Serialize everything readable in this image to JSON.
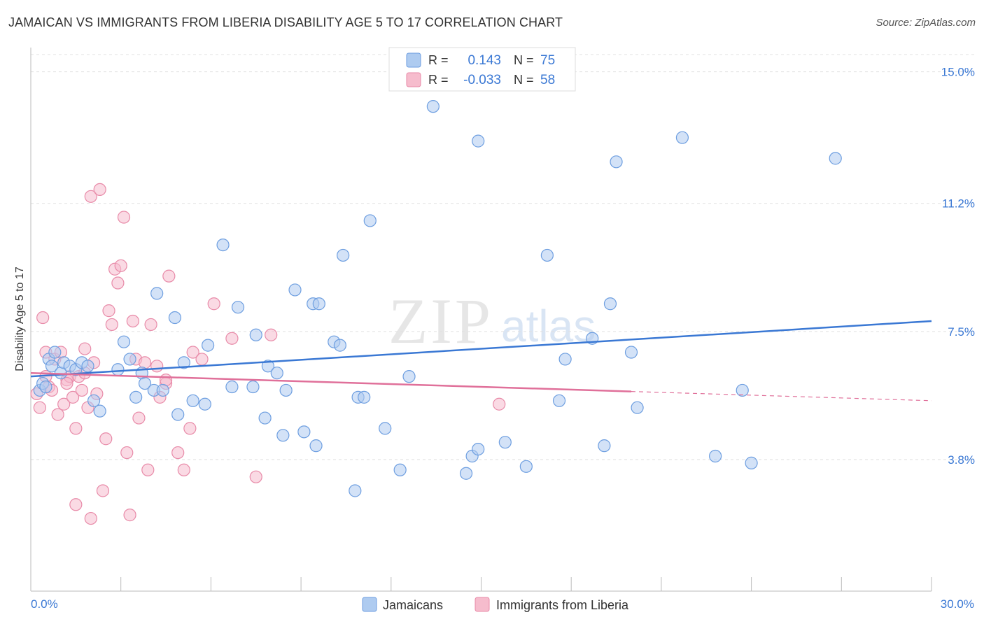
{
  "header": {
    "title": "JAMAICAN VS IMMIGRANTS FROM LIBERIA DISABILITY AGE 5 TO 17 CORRELATION CHART",
    "source": "Source: ZipAtlas.com"
  },
  "watermark": {
    "zip": "ZIP",
    "atlas": "atlas"
  },
  "legend_box": {
    "rows": [
      {
        "r_label": "R =",
        "r_value": "0.143",
        "n_label": "N =",
        "n_value": "75"
      },
      {
        "r_label": "R =",
        "r_value": "-0.033",
        "n_label": "N =",
        "n_value": "58"
      }
    ]
  },
  "bottom_legend": {
    "items": [
      "Jamaicans",
      "Immigrants from Liberia"
    ]
  },
  "colors": {
    "blue_fill": "#aecbf0",
    "blue_stroke": "#6d9ee0",
    "blue_line": "#3a78d4",
    "pink_fill": "#f6bccd",
    "pink_stroke": "#e88aa8",
    "pink_line": "#e0709a",
    "value_text": "#3a78d4",
    "grid": "#e0e0e0"
  },
  "chart_data": {
    "type": "scatter",
    "ylabel": "Disability Age 5 to 17",
    "xlim": [
      0,
      30
    ],
    "ylim": [
      0,
      15.7
    ],
    "x_tick_labels": [
      "0.0%",
      "30.0%"
    ],
    "y_ticks": [
      3.8,
      7.5,
      11.2,
      15.0
    ],
    "y_tick_labels": [
      "3.8%",
      "7.5%",
      "11.2%",
      "15.0%"
    ],
    "grid": true,
    "series": [
      {
        "name": "Jamaicans",
        "color": "blue",
        "r": 0.143,
        "n": 75,
        "trend": {
          "x": [
            0,
            30
          ],
          "y": [
            6.2,
            7.8
          ],
          "dashed_from": null
        },
        "points": [
          [
            0.3,
            5.8
          ],
          [
            0.4,
            6.0
          ],
          [
            0.5,
            5.9
          ],
          [
            0.6,
            6.7
          ],
          [
            0.7,
            6.5
          ],
          [
            0.8,
            6.9
          ],
          [
            1.0,
            6.3
          ],
          [
            1.1,
            6.6
          ],
          [
            1.3,
            6.5
          ],
          [
            1.5,
            6.4
          ],
          [
            1.7,
            6.6
          ],
          [
            1.9,
            6.5
          ],
          [
            2.1,
            5.5
          ],
          [
            2.3,
            5.2
          ],
          [
            2.9,
            6.4
          ],
          [
            3.1,
            7.2
          ],
          [
            3.3,
            6.7
          ],
          [
            3.5,
            5.6
          ],
          [
            3.7,
            6.3
          ],
          [
            3.8,
            6.0
          ],
          [
            4.1,
            5.8
          ],
          [
            4.2,
            8.6
          ],
          [
            4.4,
            5.8
          ],
          [
            4.8,
            7.9
          ],
          [
            4.9,
            5.1
          ],
          [
            5.1,
            6.6
          ],
          [
            5.4,
            5.5
          ],
          [
            5.8,
            5.4
          ],
          [
            5.9,
            7.1
          ],
          [
            6.4,
            10.0
          ],
          [
            6.7,
            5.9
          ],
          [
            6.9,
            8.2
          ],
          [
            7.4,
            5.9
          ],
          [
            7.5,
            7.4
          ],
          [
            7.8,
            5.0
          ],
          [
            7.9,
            6.5
          ],
          [
            8.2,
            6.3
          ],
          [
            8.4,
            4.5
          ],
          [
            8.5,
            5.8
          ],
          [
            8.8,
            8.7
          ],
          [
            9.1,
            4.6
          ],
          [
            9.4,
            8.3
          ],
          [
            9.5,
            4.2
          ],
          [
            9.6,
            8.3
          ],
          [
            10.1,
            7.2
          ],
          [
            10.3,
            7.1
          ],
          [
            10.4,
            9.7
          ],
          [
            10.8,
            2.9
          ],
          [
            10.9,
            5.6
          ],
          [
            11.1,
            5.6
          ],
          [
            11.3,
            10.7
          ],
          [
            11.8,
            4.7
          ],
          [
            12.3,
            3.5
          ],
          [
            12.6,
            6.2
          ],
          [
            13.4,
            14.0
          ],
          [
            14.5,
            3.4
          ],
          [
            14.7,
            3.9
          ],
          [
            14.9,
            4.1
          ],
          [
            14.9,
            13.0
          ],
          [
            15.8,
            4.3
          ],
          [
            16.5,
            3.6
          ],
          [
            17.2,
            9.7
          ],
          [
            17.6,
            5.5
          ],
          [
            17.8,
            6.7
          ],
          [
            18.7,
            7.3
          ],
          [
            19.1,
            4.2
          ],
          [
            19.3,
            8.3
          ],
          [
            19.5,
            12.4
          ],
          [
            20.0,
            6.9
          ],
          [
            20.2,
            5.3
          ],
          [
            21.7,
            13.1
          ],
          [
            22.8,
            3.9
          ],
          [
            23.7,
            5.8
          ],
          [
            24.0,
            3.7
          ],
          [
            26.8,
            12.5
          ]
        ]
      },
      {
        "name": "Immigrants from Liberia",
        "color": "pink",
        "r": -0.033,
        "n": 58,
        "trend": {
          "x": [
            0,
            30
          ],
          "y": [
            6.3,
            5.5
          ],
          "dashed_from": 20.0
        },
        "points": [
          [
            0.2,
            5.7
          ],
          [
            0.3,
            5.3
          ],
          [
            0.4,
            7.9
          ],
          [
            0.5,
            6.9
          ],
          [
            0.5,
            6.2
          ],
          [
            0.6,
            5.9
          ],
          [
            0.7,
            5.8
          ],
          [
            0.8,
            6.7
          ],
          [
            0.9,
            5.1
          ],
          [
            1.0,
            6.9
          ],
          [
            1.1,
            5.4
          ],
          [
            1.2,
            6.1
          ],
          [
            1.3,
            6.2
          ],
          [
            1.4,
            5.6
          ],
          [
            1.5,
            4.7
          ],
          [
            1.6,
            6.2
          ],
          [
            1.7,
            5.8
          ],
          [
            1.8,
            7.0
          ],
          [
            1.8,
            6.3
          ],
          [
            1.9,
            5.3
          ],
          [
            2.0,
            11.4
          ],
          [
            2.1,
            6.6
          ],
          [
            2.2,
            5.7
          ],
          [
            2.3,
            11.6
          ],
          [
            2.4,
            2.9
          ],
          [
            2.5,
            4.4
          ],
          [
            2.6,
            8.1
          ],
          [
            2.7,
            7.7
          ],
          [
            2.8,
            9.3
          ],
          [
            2.9,
            8.9
          ],
          [
            3.0,
            9.4
          ],
          [
            3.1,
            10.8
          ],
          [
            3.2,
            4.0
          ],
          [
            3.3,
            2.2
          ],
          [
            3.4,
            7.8
          ],
          [
            3.5,
            6.7
          ],
          [
            3.6,
            5.0
          ],
          [
            3.8,
            6.6
          ],
          [
            3.9,
            3.5
          ],
          [
            4.0,
            7.7
          ],
          [
            4.2,
            6.5
          ],
          [
            4.3,
            5.6
          ],
          [
            4.5,
            6.0
          ],
          [
            4.6,
            9.1
          ],
          [
            4.9,
            4.0
          ],
          [
            5.1,
            3.5
          ],
          [
            5.3,
            4.7
          ],
          [
            5.4,
            6.9
          ],
          [
            5.7,
            6.7
          ],
          [
            6.1,
            8.3
          ],
          [
            6.7,
            7.3
          ],
          [
            7.5,
            3.3
          ],
          [
            8.0,
            7.4
          ],
          [
            1.5,
            2.5
          ],
          [
            2.0,
            2.1
          ],
          [
            1.2,
            6.0
          ],
          [
            4.5,
            6.1
          ],
          [
            15.6,
            5.4
          ]
        ]
      }
    ]
  }
}
